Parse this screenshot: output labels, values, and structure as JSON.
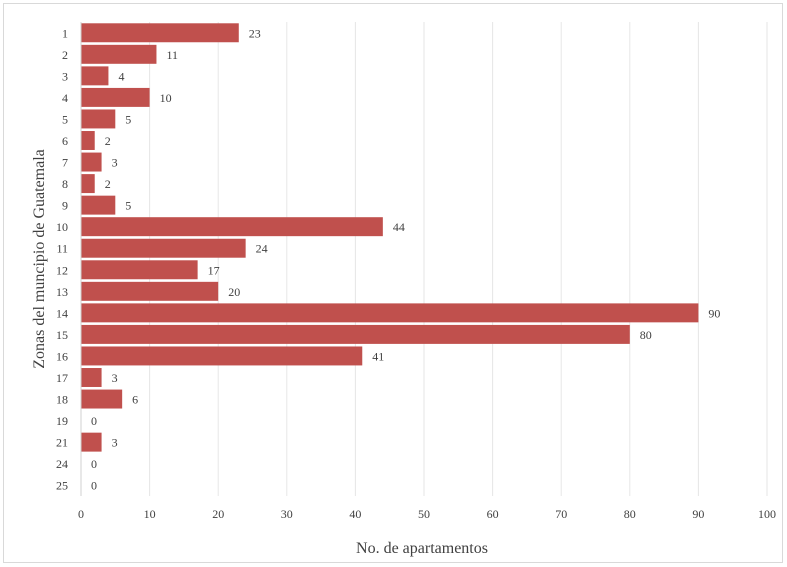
{
  "chart_data": {
    "type": "bar",
    "orientation": "horizontal",
    "title": "",
    "xlabel": "No. de apartamentos",
    "ylabel": "Zonas del muncipio de Guatemala",
    "xlim": [
      0,
      100
    ],
    "xticks": [
      0,
      10,
      20,
      30,
      40,
      50,
      60,
      70,
      80,
      90,
      100
    ],
    "grid": "vertical",
    "legend": "none",
    "bar_color": "#c0504d",
    "categories": [
      "1",
      "2",
      "3",
      "4",
      "5",
      "6",
      "7",
      "8",
      "9",
      "10",
      "11",
      "12",
      "13",
      "14",
      "15",
      "16",
      "17",
      "18",
      "19",
      "21",
      "24",
      "25"
    ],
    "values": [
      23,
      11,
      4,
      10,
      5,
      2,
      3,
      2,
      5,
      44,
      24,
      17,
      20,
      90,
      80,
      41,
      3,
      6,
      0,
      3,
      0,
      0
    ],
    "data_labels": true
  }
}
